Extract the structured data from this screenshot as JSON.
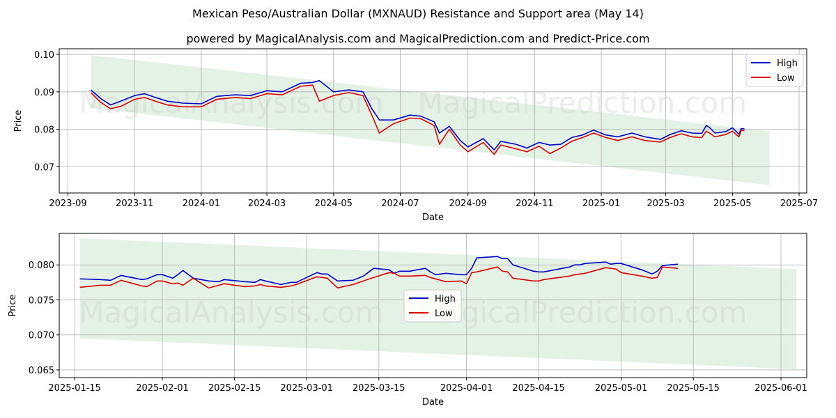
{
  "header": {
    "title": "Mexican Peso/Australian Dollar (MXNAUD) Resistance and Support area (May 14)",
    "subtitle": "powered by MagicalAnalysis.com and MagicalPrediction.com and Predict-Price.com"
  },
  "watermarks": [
    "MagicalAnalysis.com",
    "MagicalPrediction.com"
  ],
  "colors": {
    "high": "#0000cc",
    "low": "#dd0000",
    "band": "#c8e6c9",
    "grid": "#b0b0b0"
  },
  "chart_data": [
    {
      "type": "line",
      "xlabel": "Date",
      "ylabel": "Price",
      "grid": true,
      "legend_position": "top-right",
      "legend": [
        "High",
        "Low"
      ],
      "xlim": [
        "2023-08-24",
        "2025-07-08"
      ],
      "ylim": [
        0.063,
        0.1015
      ],
      "x_ticks": [
        "2023-09",
        "2023-11",
        "2024-01",
        "2024-03",
        "2024-05",
        "2024-07",
        "2024-09",
        "2024-11",
        "2025-01",
        "2025-03",
        "2025-05",
        "2025-07"
      ],
      "y_ticks": [
        0.07,
        0.08,
        0.09,
        0.1
      ],
      "y_tick_labels": [
        "0.07",
        "0.08",
        "0.09",
        "0.10"
      ],
      "band": {
        "x": [
          "2023-09-22",
          "2025-06-04"
        ],
        "upper": [
          0.0998,
          0.0795
        ],
        "lower": [
          0.0857,
          0.0651
        ]
      },
      "series": [
        {
          "name": "High",
          "x": [
            "2023-09-22",
            "2023-10-01",
            "2023-10-10",
            "2023-10-20",
            "2023-11-01",
            "2023-11-10",
            "2023-11-20",
            "2023-12-01",
            "2023-12-15",
            "2024-01-01",
            "2024-01-15",
            "2024-02-01",
            "2024-02-15",
            "2024-03-01",
            "2024-03-15",
            "2024-04-01",
            "2024-04-12",
            "2024-04-18",
            "2024-05-01",
            "2024-05-15",
            "2024-05-28",
            "2024-06-05",
            "2024-06-12",
            "2024-06-25",
            "2024-07-10",
            "2024-07-20",
            "2024-08-01",
            "2024-08-06",
            "2024-08-15",
            "2024-08-25",
            "2024-09-01",
            "2024-09-15",
            "2024-09-25",
            "2024-10-01",
            "2024-10-15",
            "2024-10-25",
            "2024-11-05",
            "2024-11-15",
            "2024-11-25",
            "2024-12-05",
            "2024-12-15",
            "2024-12-25",
            "2025-01-05",
            "2025-01-16",
            "2025-01-29",
            "2025-02-10",
            "2025-02-24",
            "2025-03-05",
            "2025-03-15",
            "2025-03-25",
            "2025-04-03",
            "2025-04-07",
            "2025-04-10",
            "2025-04-15",
            "2025-04-25",
            "2025-05-01",
            "2025-05-07",
            "2025-05-09",
            "2025-05-12"
          ],
          "values": [
            0.0905,
            0.0882,
            0.0865,
            0.0876,
            0.089,
            0.0895,
            0.0885,
            0.0875,
            0.087,
            0.0868,
            0.0888,
            0.0892,
            0.089,
            0.0903,
            0.09,
            0.0923,
            0.0925,
            0.093,
            0.09,
            0.0905,
            0.09,
            0.0855,
            0.0825,
            0.0825,
            0.0838,
            0.0835,
            0.082,
            0.079,
            0.0808,
            0.077,
            0.0753,
            0.0775,
            0.0745,
            0.0768,
            0.076,
            0.075,
            0.0765,
            0.0758,
            0.076,
            0.0778,
            0.0785,
            0.0798,
            0.0785,
            0.078,
            0.079,
            0.078,
            0.0773,
            0.0786,
            0.0796,
            0.079,
            0.0789,
            0.081,
            0.0805,
            0.079,
            0.0794,
            0.0804,
            0.0787,
            0.0802,
            0.0801
          ]
        },
        {
          "name": "Low",
          "x": [
            "2023-09-22",
            "2023-10-01",
            "2023-10-10",
            "2023-10-20",
            "2023-11-01",
            "2023-11-10",
            "2023-11-20",
            "2023-12-01",
            "2023-12-15",
            "2024-01-01",
            "2024-01-15",
            "2024-02-01",
            "2024-02-15",
            "2024-03-01",
            "2024-03-15",
            "2024-04-01",
            "2024-04-12",
            "2024-04-18",
            "2024-05-01",
            "2024-05-15",
            "2024-05-28",
            "2024-06-05",
            "2024-06-12",
            "2024-06-25",
            "2024-07-10",
            "2024-07-20",
            "2024-08-01",
            "2024-08-06",
            "2024-08-15",
            "2024-08-25",
            "2024-09-01",
            "2024-09-15",
            "2024-09-25",
            "2024-10-01",
            "2024-10-15",
            "2024-10-25",
            "2024-11-05",
            "2024-11-15",
            "2024-11-25",
            "2024-12-05",
            "2024-12-15",
            "2024-12-25",
            "2025-01-05",
            "2025-01-16",
            "2025-01-29",
            "2025-02-10",
            "2025-02-24",
            "2025-03-05",
            "2025-03-15",
            "2025-03-25",
            "2025-04-03",
            "2025-04-07",
            "2025-04-10",
            "2025-04-15",
            "2025-04-25",
            "2025-05-01",
            "2025-05-07",
            "2025-05-09",
            "2025-05-12"
          ],
          "values": [
            0.0898,
            0.0872,
            0.0855,
            0.0862,
            0.088,
            0.0885,
            0.0875,
            0.0865,
            0.086,
            0.086,
            0.088,
            0.0885,
            0.0882,
            0.0895,
            0.0892,
            0.0915,
            0.0918,
            0.0875,
            0.089,
            0.0898,
            0.089,
            0.0838,
            0.079,
            0.0815,
            0.083,
            0.0828,
            0.081,
            0.076,
            0.08,
            0.0758,
            0.074,
            0.0765,
            0.0733,
            0.0758,
            0.0748,
            0.074,
            0.0755,
            0.0735,
            0.075,
            0.0768,
            0.0778,
            0.079,
            0.0778,
            0.077,
            0.078,
            0.077,
            0.0766,
            0.0778,
            0.0788,
            0.078,
            0.0778,
            0.0795,
            0.079,
            0.078,
            0.0786,
            0.0795,
            0.078,
            0.0797,
            0.0796
          ]
        }
      ]
    },
    {
      "type": "line",
      "xlabel": "Date",
      "ylabel": "Price",
      "grid": true,
      "legend_position": "center",
      "legend": [
        "High",
        "Low"
      ],
      "xlim": [
        "2025-01-12",
        "2025-06-06"
      ],
      "ylim": [
        0.0639,
        0.0845
      ],
      "x_ticks": [
        "2025-01-15",
        "2025-02-01",
        "2025-02-15",
        "2025-03-01",
        "2025-03-15",
        "2025-04-01",
        "2025-04-15",
        "2025-05-01",
        "2025-05-15",
        "2025-06-01"
      ],
      "y_ticks": [
        0.065,
        0.07,
        0.075,
        0.08
      ],
      "y_tick_labels": [
        "0.065",
        "0.070",
        "0.075",
        "0.080"
      ],
      "band": {
        "x": [
          "2025-01-16",
          "2025-06-04"
        ],
        "upper": [
          0.0838,
          0.0794
        ],
        "lower": [
          0.0695,
          0.0651
        ]
      },
      "series": [
        {
          "name": "High",
          "x": [
            "2025-01-16",
            "2025-01-20",
            "2025-01-22",
            "2025-01-24",
            "2025-01-28",
            "2025-01-29",
            "2025-01-31",
            "2025-02-01",
            "2025-02-03",
            "2025-02-04",
            "2025-02-05",
            "2025-02-07",
            "2025-02-10",
            "2025-02-12",
            "2025-02-13",
            "2025-02-17",
            "2025-02-19",
            "2025-02-20",
            "2025-02-21",
            "2025-02-24",
            "2025-02-26",
            "2025-02-27",
            "2025-03-03",
            "2025-03-04",
            "2025-03-05",
            "2025-03-07",
            "2025-03-10",
            "2025-03-12",
            "2025-03-14",
            "2025-03-17",
            "2025-03-18",
            "2025-03-19",
            "2025-03-21",
            "2025-03-24",
            "2025-03-25",
            "2025-03-26",
            "2025-03-28",
            "2025-03-31",
            "2025-04-01",
            "2025-04-02",
            "2025-04-03",
            "2025-04-07",
            "2025-04-08",
            "2025-04-09",
            "2025-04-10",
            "2025-04-14",
            "2025-04-15",
            "2025-04-16",
            "2025-04-21",
            "2025-04-22",
            "2025-04-23",
            "2025-04-24",
            "2025-04-28",
            "2025-04-29",
            "2025-04-30",
            "2025-05-01",
            "2025-05-05",
            "2025-05-07",
            "2025-05-08",
            "2025-05-09",
            "2025-05-12"
          ],
          "values": [
            0.078,
            0.0779,
            0.0778,
            0.0785,
            0.0779,
            0.078,
            0.0786,
            0.0786,
            0.0781,
            0.0786,
            0.0792,
            0.0781,
            0.0777,
            0.0776,
            0.0779,
            0.0776,
            0.0775,
            0.0779,
            0.0777,
            0.0772,
            0.0775,
            0.0775,
            0.0789,
            0.0787,
            0.0787,
            0.0777,
            0.0778,
            0.0784,
            0.0795,
            0.0793,
            0.0788,
            0.0791,
            0.0791,
            0.0795,
            0.079,
            0.0786,
            0.0788,
            0.0786,
            0.0786,
            0.0795,
            0.081,
            0.0812,
            0.0809,
            0.0809,
            0.08,
            0.0791,
            0.079,
            0.079,
            0.0797,
            0.08,
            0.08,
            0.0802,
            0.0804,
            0.0801,
            0.0802,
            0.0802,
            0.0793,
            0.0787,
            0.0791,
            0.0799,
            0.0801
          ]
        },
        {
          "name": "Low",
          "x": [
            "2025-01-16",
            "2025-01-20",
            "2025-01-22",
            "2025-01-24",
            "2025-01-28",
            "2025-01-29",
            "2025-01-31",
            "2025-02-01",
            "2025-02-03",
            "2025-02-04",
            "2025-02-05",
            "2025-02-07",
            "2025-02-10",
            "2025-02-12",
            "2025-02-13",
            "2025-02-17",
            "2025-02-19",
            "2025-02-20",
            "2025-02-21",
            "2025-02-24",
            "2025-02-26",
            "2025-02-27",
            "2025-03-03",
            "2025-03-04",
            "2025-03-05",
            "2025-03-07",
            "2025-03-10",
            "2025-03-12",
            "2025-03-14",
            "2025-03-17",
            "2025-03-18",
            "2025-03-19",
            "2025-03-21",
            "2025-03-24",
            "2025-03-25",
            "2025-03-26",
            "2025-03-28",
            "2025-03-31",
            "2025-04-01",
            "2025-04-02",
            "2025-04-03",
            "2025-04-07",
            "2025-04-08",
            "2025-04-09",
            "2025-04-10",
            "2025-04-14",
            "2025-04-15",
            "2025-04-16",
            "2025-04-21",
            "2025-04-22",
            "2025-04-23",
            "2025-04-24",
            "2025-04-28",
            "2025-04-29",
            "2025-04-30",
            "2025-05-01",
            "2025-05-05",
            "2025-05-07",
            "2025-05-08",
            "2025-05-09",
            "2025-05-12"
          ],
          "values": [
            0.0768,
            0.0771,
            0.0771,
            0.0778,
            0.077,
            0.0769,
            0.0777,
            0.0777,
            0.0773,
            0.0774,
            0.0771,
            0.0781,
            0.0767,
            0.0771,
            0.0773,
            0.0769,
            0.077,
            0.0772,
            0.077,
            0.0768,
            0.077,
            0.0772,
            0.0783,
            0.0782,
            0.0781,
            0.0767,
            0.0772,
            0.0777,
            0.0782,
            0.0789,
            0.0788,
            0.0784,
            0.0784,
            0.0785,
            0.0782,
            0.078,
            0.0776,
            0.0777,
            0.0773,
            0.0789,
            0.079,
            0.0797,
            0.0791,
            0.079,
            0.0781,
            0.0777,
            0.0777,
            0.0779,
            0.0784,
            0.0786,
            0.0787,
            0.0788,
            0.0796,
            0.0795,
            0.0794,
            0.0789,
            0.0784,
            0.0781,
            0.0782,
            0.0797,
            0.0795
          ]
        }
      ]
    }
  ]
}
